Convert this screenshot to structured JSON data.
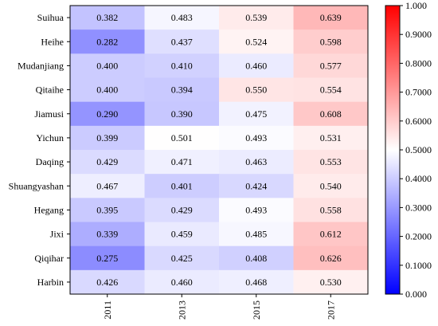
{
  "chart_data": {
    "type": "heatmap",
    "x_categories": [
      "2011",
      "2013",
      "2015",
      "2017"
    ],
    "y_categories": [
      "Suihua",
      "Heihe",
      "Mudanjiang",
      "Qitaihe",
      "Jiamusi",
      "Yichun",
      "Daqing",
      "Shuangyashan",
      "Hegang",
      "Jixi",
      "Qiqihar",
      "Harbin"
    ],
    "values": [
      [
        0.382,
        0.483,
        0.539,
        0.639
      ],
      [
        0.282,
        0.437,
        0.524,
        0.598
      ],
      [
        0.4,
        0.41,
        0.46,
        0.577
      ],
      [
        0.4,
        0.394,
        0.55,
        0.554
      ],
      [
        0.29,
        0.39,
        0.475,
        0.608
      ],
      [
        0.399,
        0.501,
        0.493,
        0.531
      ],
      [
        0.429,
        0.471,
        0.463,
        0.553
      ],
      [
        0.467,
        0.401,
        0.424,
        0.54
      ],
      [
        0.395,
        0.429,
        0.493,
        0.558
      ],
      [
        0.339,
        0.459,
        0.485,
        0.612
      ],
      [
        0.275,
        0.425,
        0.408,
        0.626
      ],
      [
        0.426,
        0.46,
        0.468,
        0.53
      ]
    ],
    "cell_labels": [
      [
        "0.382",
        "0.483",
        "0.539",
        "0.639"
      ],
      [
        "0.282",
        "0.437",
        "0.524",
        "0.598"
      ],
      [
        "0.400",
        "0.410",
        "0.460",
        "0.577"
      ],
      [
        "0.400",
        "0.394",
        "0.550",
        "0.554"
      ],
      [
        "0.290",
        "0.390",
        "0.475",
        "0.608"
      ],
      [
        "0.399",
        "0.501",
        "0.493",
        "0.531"
      ],
      [
        "0.429",
        "0.471",
        "0.463",
        "0.553"
      ],
      [
        "0.467",
        "0.401",
        "0.424",
        "0.540"
      ],
      [
        "0.395",
        "0.429",
        "0.493",
        "0.558"
      ],
      [
        "0.339",
        "0.459",
        "0.485",
        "0.612"
      ],
      [
        "0.275",
        "0.425",
        "0.408",
        "0.626"
      ],
      [
        "0.426",
        "0.460",
        "0.468",
        "0.530"
      ]
    ],
    "colorbar": {
      "range": [
        0,
        1
      ],
      "ticks": [
        0,
        0.1,
        0.2,
        0.3,
        0.4,
        0.5,
        0.6,
        0.7,
        0.8,
        0.9,
        1.0
      ],
      "tick_labels": [
        "0.000",
        "0.1000",
        "0.2000",
        "0.3000",
        "0.4000",
        "0.5000",
        "0.6000",
        "0.7000",
        "0.8000",
        "0.9000",
        "1.000"
      ],
      "colors": {
        "low": "#0000ff",
        "mid": "#ffffff",
        "high": "#ff0000"
      }
    }
  }
}
